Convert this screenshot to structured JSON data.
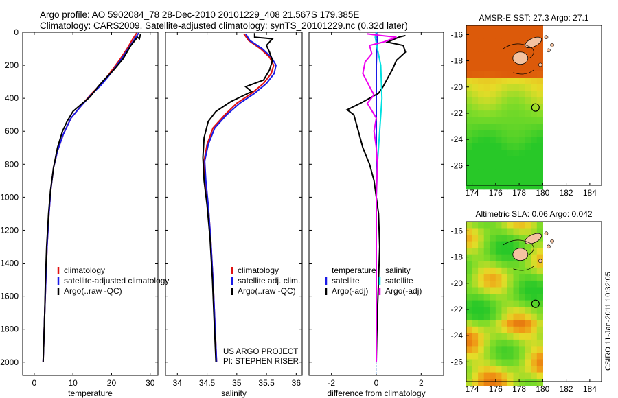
{
  "header": {
    "line1": "Argo profile: AO 5902084_78 28-Dec-2010 20101229_408 21.567S 179.385E",
    "line2": "Climatology: CARS2009. Satellite-adjusted climatology: synTS_20101229.nc (0.32d later)"
  },
  "credit": "CSIRO 11-Jan-2011 10:32:05",
  "colors": {
    "climatology": "#e01010",
    "satellite": "#1a1ae6",
    "argo": "#000000",
    "cyan": "#00e0e0",
    "magenta": "#ee00ee",
    "circle": "#000000"
  },
  "chart_data": [
    {
      "type": "line",
      "panel": "temperature",
      "xlabel": "temperature",
      "ylabel": "",
      "xlim": [
        -3,
        32
      ],
      "ylim": [
        2080,
        0
      ],
      "y_reversed": true,
      "xticks": [
        0,
        10,
        20,
        30
      ],
      "yticks": [
        0,
        200,
        400,
        600,
        800,
        1000,
        1200,
        1400,
        1600,
        1800,
        2000
      ],
      "legend": [
        "climatology",
        "satellite-adjusted climatology",
        "Argo(..raw -QC)"
      ],
      "series": [
        {
          "name": "climatology",
          "color": "#e01010",
          "points": [
            [
              26.5,
              5
            ],
            [
              25.5,
              40
            ],
            [
              24,
              100
            ],
            [
              22,
              170
            ],
            [
              19.5,
              250
            ],
            [
              17,
              320
            ],
            [
              14.5,
              380
            ],
            [
              12,
              450
            ],
            [
              9.5,
              520
            ],
            [
              7.5,
              620
            ],
            [
              6,
              720
            ],
            [
              5,
              820
            ],
            [
              4.3,
              950
            ],
            [
              3.8,
              1100
            ],
            [
              3.3,
              1300
            ],
            [
              3,
              1500
            ],
            [
              2.7,
              1700
            ],
            [
              2.5,
              1850
            ],
            [
              2.3,
              2000
            ]
          ]
        },
        {
          "name": "satellite-adjusted climatology",
          "color": "#1a1ae6",
          "points": [
            [
              27,
              5
            ],
            [
              26,
              40
            ],
            [
              24.3,
              100
            ],
            [
              22.3,
              170
            ],
            [
              19.8,
              250
            ],
            [
              17.3,
              320
            ],
            [
              14.7,
              380
            ],
            [
              12,
              450
            ],
            [
              9.5,
              520
            ],
            [
              7.5,
              620
            ],
            [
              6,
              720
            ],
            [
              5,
              820
            ],
            [
              4.3,
              950
            ],
            [
              3.8,
              1100
            ],
            [
              3.3,
              1300
            ],
            [
              3,
              1500
            ],
            [
              2.7,
              1700
            ],
            [
              2.5,
              1850
            ],
            [
              2.3,
              2000
            ]
          ]
        },
        {
          "name": "Argo(..raw -QC)",
          "color": "#000000",
          "points": [
            [
              27.5,
              10
            ],
            [
              27.2,
              40
            ],
            [
              26.7,
              30
            ],
            [
              25,
              80
            ],
            [
              23,
              160
            ],
            [
              20.5,
              230
            ],
            [
              18,
              290
            ],
            [
              16.5,
              330
            ],
            [
              14.5,
              390
            ],
            [
              12,
              440
            ],
            [
              10,
              480
            ],
            [
              8.5,
              540
            ],
            [
              7.3,
              600
            ],
            [
              6,
              700
            ],
            [
              5,
              820
            ],
            [
              4.2,
              960
            ],
            [
              3.7,
              1100
            ],
            [
              3.2,
              1300
            ],
            [
              2.9,
              1500
            ],
            [
              2.7,
              1700
            ],
            [
              2.5,
              1850
            ],
            [
              2.3,
              2000
            ]
          ]
        }
      ]
    },
    {
      "type": "line",
      "panel": "salinity",
      "xlabel": "salinity",
      "ylabel": "",
      "xlim": [
        33.8,
        36.1
      ],
      "ylim": [
        2080,
        0
      ],
      "y_reversed": true,
      "xticks": [
        34,
        34.5,
        35,
        35.5,
        36
      ],
      "legend": [
        "climatology",
        "satellite adj. clim.",
        "Argo(..raw -QC)"
      ],
      "annotations": [
        "US ARGO PROJECT",
        "PI: STEPHEN RISER"
      ],
      "series": [
        {
          "name": "climatology",
          "color": "#e01010",
          "points": [
            [
              35.12,
              10
            ],
            [
              35.2,
              50
            ],
            [
              35.4,
              100
            ],
            [
              35.55,
              150
            ],
            [
              35.62,
              200
            ],
            [
              35.58,
              250
            ],
            [
              35.45,
              310
            ],
            [
              35.25,
              370
            ],
            [
              35,
              430
            ],
            [
              34.8,
              500
            ],
            [
              34.6,
              580
            ],
            [
              34.5,
              680
            ],
            [
              34.45,
              780
            ],
            [
              34.47,
              900
            ],
            [
              34.52,
              1050
            ],
            [
              34.56,
              1250
            ],
            [
              34.6,
              1500
            ],
            [
              34.63,
              1750
            ],
            [
              34.66,
              2000
            ]
          ]
        },
        {
          "name": "satellite adj. clim.",
          "color": "#1a1ae6",
          "points": [
            [
              35.15,
              10
            ],
            [
              35.22,
              50
            ],
            [
              35.43,
              100
            ],
            [
              35.58,
              150
            ],
            [
              35.66,
              200
            ],
            [
              35.63,
              250
            ],
            [
              35.5,
              310
            ],
            [
              35.3,
              370
            ],
            [
              35.05,
              430
            ],
            [
              34.83,
              500
            ],
            [
              34.63,
              580
            ],
            [
              34.52,
              680
            ],
            [
              34.46,
              780
            ],
            [
              34.48,
              900
            ],
            [
              34.52,
              1050
            ],
            [
              34.56,
              1250
            ],
            [
              34.6,
              1500
            ],
            [
              34.63,
              1750
            ],
            [
              34.66,
              2000
            ]
          ]
        },
        {
          "name": "Argo(..raw -QC)",
          "color": "#000000",
          "points": [
            [
              35.3,
              5
            ],
            [
              35.3,
              30
            ],
            [
              35.6,
              40
            ],
            [
              35.5,
              80
            ],
            [
              35.55,
              120
            ],
            [
              35.6,
              170
            ],
            [
              35.55,
              230
            ],
            [
              35.45,
              290
            ],
            [
              35.15,
              330
            ],
            [
              35.25,
              360
            ],
            [
              34.9,
              420
            ],
            [
              34.65,
              480
            ],
            [
              34.52,
              540
            ],
            [
              34.45,
              640
            ],
            [
              34.43,
              760
            ],
            [
              34.45,
              900
            ],
            [
              34.5,
              1050
            ],
            [
              34.55,
              1250
            ],
            [
              34.59,
              1500
            ],
            [
              34.62,
              1750
            ],
            [
              34.65,
              2000
            ]
          ]
        }
      ]
    },
    {
      "type": "line",
      "panel": "difference",
      "xlabel": "difference from climatology",
      "ylabel": "",
      "xlim": [
        -3,
        3
      ],
      "ylim": [
        2080,
        0
      ],
      "y_reversed": true,
      "xticks": [
        -2,
        0,
        2
      ],
      "legend_groups": [
        {
          "title": "temperature",
          "items": [
            "satellite",
            "Argo(-adj)"
          ]
        },
        {
          "title": "salinity",
          "items": [
            "satellite",
            "Argo(-adj)"
          ]
        }
      ],
      "series": [
        {
          "name": "temperature satellite",
          "color": "#1a1ae6",
          "points": [
            [
              0,
              0
            ],
            [
              0.05,
              20
            ],
            [
              0.02,
              100
            ],
            [
              0,
              200
            ],
            [
              0,
              2000
            ]
          ]
        },
        {
          "name": "temperature Argo(-adj)",
          "color": "#000000",
          "points": [
            [
              1.3,
              20
            ],
            [
              1,
              30
            ],
            [
              0.5,
              60
            ],
            [
              1.2,
              80
            ],
            [
              1.3,
              120
            ],
            [
              0.9,
              170
            ],
            [
              0.7,
              230
            ],
            [
              0.5,
              280
            ],
            [
              0.3,
              330
            ],
            [
              0.1,
              370
            ],
            [
              -0.7,
              430
            ],
            [
              -1.3,
              470
            ],
            [
              -1,
              500
            ],
            [
              -0.8,
              600
            ],
            [
              -0.6,
              700
            ],
            [
              -0.3,
              800
            ],
            [
              -0.1,
              900
            ],
            [
              0,
              1000
            ],
            [
              0.1,
              1100
            ],
            [
              0.15,
              1300
            ],
            [
              0.1,
              1500
            ],
            [
              0.05,
              1700
            ],
            [
              0.02,
              1850
            ],
            [
              0,
              2000
            ]
          ]
        },
        {
          "name": "salinity satellite",
          "color": "#00e0e0",
          "points": [
            [
              0,
              0
            ],
            [
              -0.05,
              30
            ],
            [
              0.05,
              100
            ],
            [
              0.2,
              200
            ],
            [
              0.25,
              400
            ],
            [
              0.15,
              600
            ],
            [
              0.05,
              800
            ],
            [
              0,
              1000
            ],
            [
              0,
              2000
            ]
          ]
        },
        {
          "name": "salinity Argo(-adj)",
          "color": "#ee00ee",
          "points": [
            [
              -0.4,
              10
            ],
            [
              0.2,
              20
            ],
            [
              0.9,
              30
            ],
            [
              0.3,
              60
            ],
            [
              -0.3,
              80
            ],
            [
              -0.2,
              130
            ],
            [
              -0.5,
              180
            ],
            [
              -0.6,
              250
            ],
            [
              -0.3,
              330
            ],
            [
              -0.1,
              380
            ],
            [
              -0.4,
              430
            ],
            [
              0,
              520
            ],
            [
              -0.1,
              600
            ],
            [
              0,
              700
            ],
            [
              0.05,
              800
            ],
            [
              0,
              1000
            ],
            [
              0,
              2000
            ]
          ]
        }
      ]
    }
  ],
  "maps": [
    {
      "title": "AMSR-E SST: 27.3 Argo: 27.1",
      "xlim": [
        173.5,
        185
      ],
      "ylim": [
        -27.5,
        -15.3
      ],
      "xticks": [
        174,
        176,
        178,
        180,
        182,
        184
      ],
      "yticks": [
        -16,
        -18,
        -20,
        -22,
        -24,
        -26
      ],
      "argo_position": [
        179.385,
        -21.567
      ],
      "data_east_limit": 180
    },
    {
      "title": "Altimetric SLA: 0.06 Argo: 0.042",
      "xlim": [
        173.5,
        185
      ],
      "ylim": [
        -27.5,
        -15.3
      ],
      "xticks": [
        174,
        176,
        178,
        180,
        182,
        184
      ],
      "yticks": [
        -16,
        -18,
        -20,
        -22,
        -24,
        -26
      ],
      "argo_position": [
        179.385,
        -21.567
      ],
      "data_east_limit": 180
    }
  ]
}
